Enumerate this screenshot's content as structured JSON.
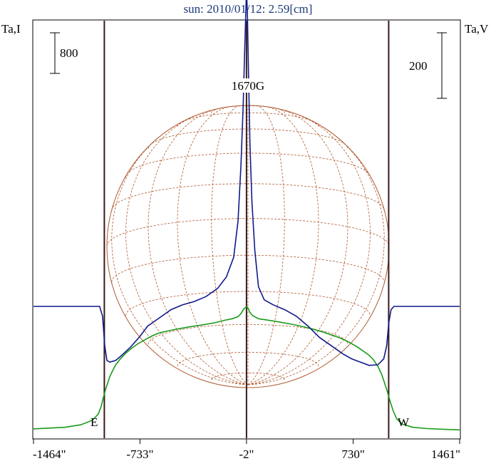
{
  "chart_data": {
    "type": "line",
    "title": "sun: 2010/01/12: 2.59[cm]",
    "left_axis_label": "Ta,I",
    "right_axis_label": "Ta,V",
    "left_scale_bar": "800",
    "right_scale_bar": "200",
    "peak_annotation": "1670G",
    "limb_labels": {
      "east": "E",
      "west": "W"
    },
    "xlim": [
      -1464,
      1461
    ],
    "x_ticks": [
      {
        "value": -1464,
        "label": "-1464\""
      },
      {
        "value": -733,
        "label": "-733\""
      },
      {
        "value": -2,
        "label": "-2\""
      },
      {
        "value": 730,
        "label": "730\""
      },
      {
        "value": 1461,
        "label": "1461\""
      }
    ],
    "vertical_markers": [
      -978,
      -2,
      974
    ],
    "grid": false,
    "colors": {
      "title": "#1e3a78",
      "intensity": "#1a9a1a",
      "polarization": "#101a8a",
      "markers": "#3a1a1a",
      "disk": "#b05a30"
    },
    "series": [
      {
        "id": "intensity",
        "color": "#1a9a1a",
        "x": [
          -1464,
          -1360,
          -1250,
          -1140,
          -1060,
          -1020,
          -1000,
          -985,
          -970,
          -955,
          -940,
          -920,
          -900,
          -870,
          -830,
          -790,
          -740,
          -690,
          -650,
          -600,
          -540,
          -470,
          -390,
          -300,
          -220,
          -150,
          -100,
          -60,
          -40,
          -30,
          -20,
          -10,
          0,
          10,
          20,
          40,
          80,
          150,
          230,
          310,
          390,
          460,
          520,
          580,
          640,
          700,
          760,
          800,
          840,
          870,
          900,
          925,
          945,
          965,
          985,
          1005,
          1030,
          1070,
          1140,
          1240,
          1360,
          1461
        ],
        "y": [
          30,
          45,
          60,
          110,
          200,
          320,
          470,
          640,
          800,
          930,
          1060,
          1180,
          1290,
          1400,
          1520,
          1620,
          1720,
          1800,
          1860,
          1920,
          1960,
          2000,
          2040,
          2080,
          2120,
          2170,
          2200,
          2240,
          2300,
          2350,
          2390,
          2420,
          2440,
          2400,
          2330,
          2260,
          2200,
          2170,
          2130,
          2090,
          2040,
          1990,
          1940,
          1880,
          1820,
          1740,
          1640,
          1560,
          1480,
          1390,
          1260,
          1110,
          940,
          760,
          560,
          380,
          220,
          120,
          60,
          35,
          20,
          10
        ]
      },
      {
        "id": "polarization",
        "color": "#101a8a",
        "x": [
          -1464,
          -1300,
          -1150,
          -1010,
          -990,
          -975,
          -960,
          -940,
          -900,
          -860,
          -800,
          -740,
          -680,
          -600,
          -520,
          -440,
          -360,
          -280,
          -200,
          -140,
          -90,
          -60,
          -40,
          -25,
          -15,
          -8,
          -2,
          5,
          12,
          22,
          35,
          55,
          80,
          120,
          180,
          260,
          340,
          420,
          500,
          580,
          660,
          720,
          780,
          840,
          900,
          940,
          960,
          975,
          990,
          1010,
          1100,
          1250,
          1461
        ],
        "y": [
          0,
          0,
          0,
          0,
          -30,
          -120,
          -165,
          -170,
          -165,
          -150,
          -125,
          -95,
          -60,
          -35,
          -10,
          5,
          15,
          30,
          55,
          90,
          150,
          260,
          430,
          610,
          770,
          880,
          970,
          880,
          700,
          490,
          320,
          170,
          60,
          20,
          5,
          -10,
          -30,
          -60,
          -95,
          -120,
          -145,
          -160,
          -170,
          -180,
          -178,
          -160,
          -120,
          -50,
          -10,
          0,
          0,
          0,
          0
        ]
      }
    ]
  }
}
